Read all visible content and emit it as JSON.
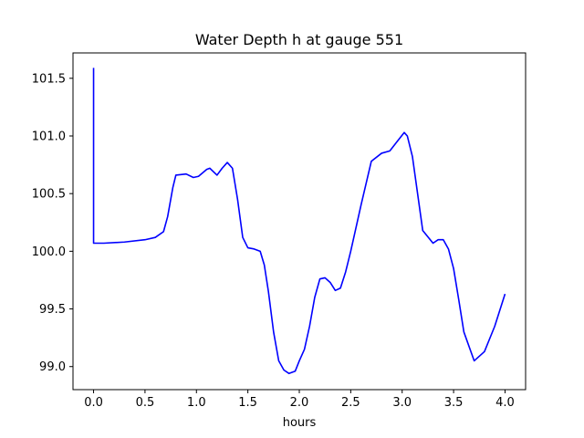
{
  "chart_data": {
    "type": "line",
    "title": "Water Depth h at gauge 551",
    "xlabel": "hours",
    "ylabel": "",
    "xlim": [
      -0.2,
      4.2
    ],
    "ylim": [
      98.8,
      101.72
    ],
    "xticks": [
      0.0,
      0.5,
      1.0,
      1.5,
      2.0,
      2.5,
      3.0,
      3.5,
      4.0
    ],
    "xtick_labels": [
      "0.0",
      "0.5",
      "1.0",
      "1.5",
      "2.0",
      "2.5",
      "3.0",
      "3.5",
      "4.0"
    ],
    "yticks": [
      99.0,
      99.5,
      100.0,
      100.5,
      101.0,
      101.5
    ],
    "ytick_labels": [
      "99.0",
      "99.5",
      "100.0",
      "100.5",
      "101.0",
      "101.5"
    ],
    "grid": false,
    "legend": "none",
    "series": [
      {
        "color": "#0000ff",
        "x": [
          0.0,
          0.0,
          0.1,
          0.3,
          0.5,
          0.6,
          0.68,
          0.72,
          0.77,
          0.8,
          0.9,
          0.97,
          1.02,
          1.1,
          1.13,
          1.2,
          1.25,
          1.3,
          1.35,
          1.4,
          1.45,
          1.5,
          1.56,
          1.62,
          1.66,
          1.7,
          1.75,
          1.8,
          1.85,
          1.9,
          1.96,
          2.0,
          2.05,
          2.1,
          2.15,
          2.2,
          2.25,
          2.3,
          2.35,
          2.4,
          2.45,
          2.5,
          2.6,
          2.7,
          2.8,
          2.88,
          2.95,
          3.02,
          3.05,
          3.1,
          3.2,
          3.3,
          3.35,
          3.4,
          3.45,
          3.5,
          3.55,
          3.6,
          3.7,
          3.8,
          3.9,
          4.0
        ],
        "y": [
          101.59,
          100.07,
          100.07,
          100.08,
          100.1,
          100.12,
          100.17,
          100.3,
          100.55,
          100.66,
          100.67,
          100.64,
          100.65,
          100.71,
          100.72,
          100.66,
          100.72,
          100.77,
          100.72,
          100.45,
          100.12,
          100.03,
          100.02,
          100.0,
          99.88,
          99.65,
          99.3,
          99.05,
          98.97,
          98.94,
          98.96,
          99.05,
          99.15,
          99.35,
          99.6,
          99.76,
          99.77,
          99.73,
          99.66,
          99.68,
          99.82,
          100.0,
          100.4,
          100.78,
          100.85,
          100.87,
          100.95,
          101.03,
          101.0,
          100.82,
          100.18,
          100.07,
          100.1,
          100.1,
          100.02,
          99.85,
          99.58,
          99.3,
          99.05,
          99.13,
          99.35,
          99.63
        ]
      }
    ]
  }
}
